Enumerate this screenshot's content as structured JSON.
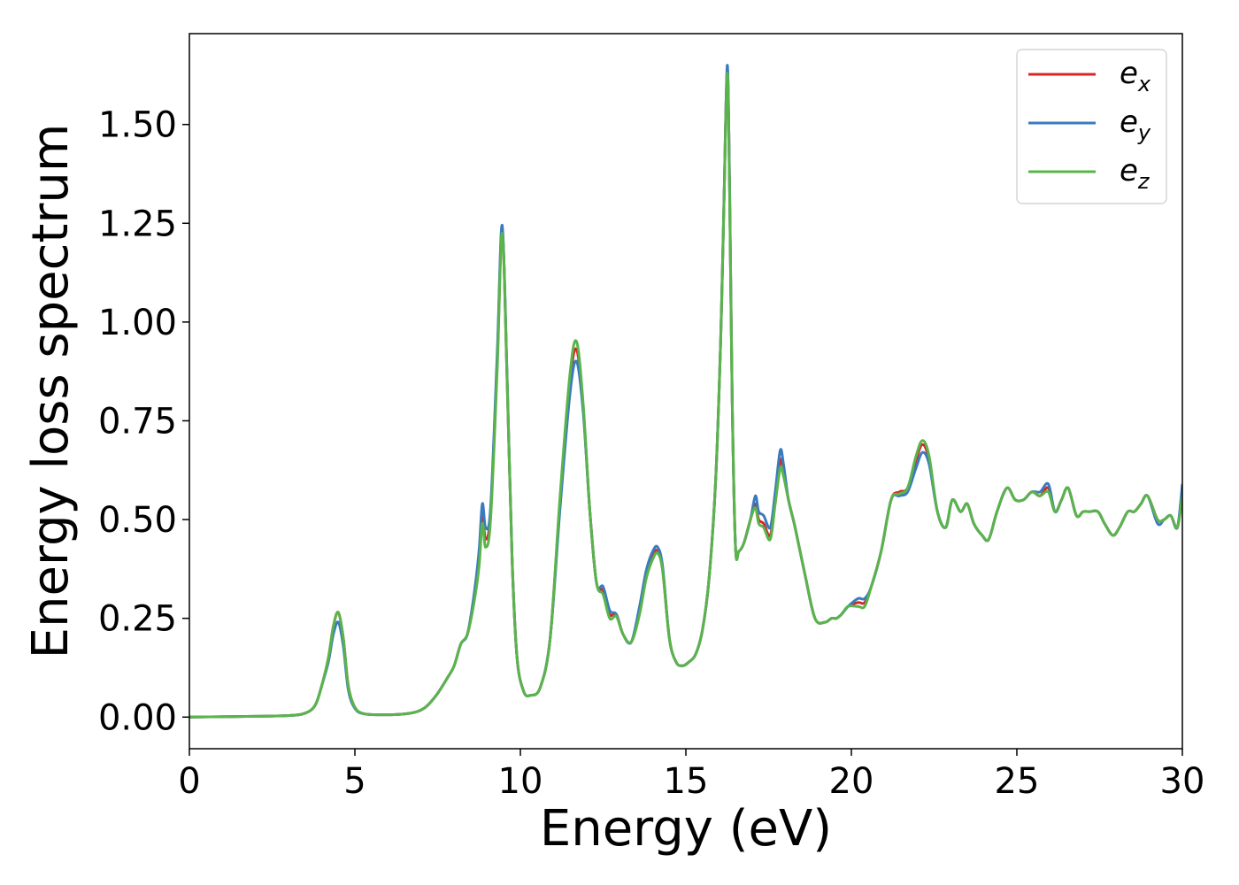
{
  "chart_data": {
    "type": "line",
    "xlabel": "Energy (eV)",
    "ylabel": "Energy loss spectrum",
    "xlim": [
      0,
      30
    ],
    "ylim": [
      -0.08,
      1.73
    ],
    "xticks": [
      0,
      5,
      10,
      15,
      20,
      25,
      30
    ],
    "xtick_labels": [
      "0",
      "5",
      "10",
      "15",
      "20",
      "25",
      "30"
    ],
    "yticks": [
      0,
      0.25,
      0.5,
      0.75,
      1.0,
      1.25,
      1.5
    ],
    "ytick_labels": [
      "0.00",
      "0.25",
      "0.50",
      "0.75",
      "1.00",
      "1.25",
      "1.50"
    ],
    "grid": false,
    "legend_position": "top-right",
    "x": [
      0,
      1,
      2,
      3,
      3.5,
      3.8,
      4.0,
      4.2,
      4.35,
      4.5,
      4.65,
      4.8,
      5.0,
      5.3,
      6.0,
      6.5,
      6.8,
      7.0,
      7.2,
      7.5,
      7.8,
      8.0,
      8.2,
      8.4,
      8.6,
      8.75,
      8.85,
      8.95,
      9.1,
      9.3,
      9.45,
      9.6,
      9.75,
      9.9,
      10.1,
      10.3,
      10.6,
      10.9,
      11.2,
      11.5,
      11.7,
      11.9,
      12.1,
      12.3,
      12.5,
      12.7,
      12.9,
      13.1,
      13.35,
      13.6,
      13.8,
      14.0,
      14.15,
      14.3,
      14.5,
      14.7,
      14.9,
      15.1,
      15.3,
      15.5,
      15.7,
      15.9,
      16.05,
      16.15,
      16.25,
      16.32,
      16.4,
      16.5,
      16.6,
      16.75,
      16.95,
      17.1,
      17.2,
      17.35,
      17.55,
      17.7,
      17.85,
      17.95,
      18.1,
      18.3,
      18.6,
      18.9,
      19.2,
      19.4,
      19.55,
      19.7,
      19.9,
      20.2,
      20.4,
      20.6,
      20.9,
      21.2,
      21.45,
      21.7,
      21.95,
      22.15,
      22.35,
      22.6,
      22.85,
      23.05,
      23.3,
      23.5,
      23.7,
      23.95,
      24.15,
      24.4,
      24.7,
      24.95,
      25.2,
      25.45,
      25.7,
      25.95,
      26.15,
      26.35,
      26.55,
      26.8,
      27.0,
      27.2,
      27.45,
      27.65,
      27.9,
      28.1,
      28.35,
      28.55,
      28.75,
      28.95,
      29.25,
      29.45,
      29.65,
      29.85,
      30.0
    ],
    "series": [
      {
        "name": "e",
        "name_sub": "x",
        "color": "#d62728",
        "values": [
          0,
          0.001,
          0.002,
          0.004,
          0.01,
          0.03,
          0.08,
          0.15,
          0.23,
          0.265,
          0.2,
          0.08,
          0.025,
          0.008,
          0.006,
          0.008,
          0.012,
          0.018,
          0.03,
          0.06,
          0.1,
          0.13,
          0.185,
          0.21,
          0.3,
          0.4,
          0.51,
          0.45,
          0.52,
          0.9,
          1.235,
          0.85,
          0.4,
          0.15,
          0.065,
          0.055,
          0.075,
          0.2,
          0.55,
          0.85,
          0.93,
          0.78,
          0.52,
          0.34,
          0.32,
          0.26,
          0.26,
          0.21,
          0.19,
          0.27,
          0.36,
          0.41,
          0.42,
          0.37,
          0.2,
          0.14,
          0.13,
          0.14,
          0.16,
          0.22,
          0.35,
          0.6,
          0.95,
          1.3,
          1.64,
          1.35,
          0.8,
          0.43,
          0.42,
          0.44,
          0.5,
          0.54,
          0.5,
          0.49,
          0.46,
          0.55,
          0.65,
          0.62,
          0.55,
          0.48,
          0.36,
          0.25,
          0.24,
          0.25,
          0.25,
          0.26,
          0.28,
          0.29,
          0.29,
          0.33,
          0.42,
          0.55,
          0.57,
          0.58,
          0.65,
          0.69,
          0.65,
          0.52,
          0.48,
          0.55,
          0.52,
          0.54,
          0.49,
          0.46,
          0.45,
          0.52,
          0.58,
          0.55,
          0.55,
          0.57,
          0.56,
          0.58,
          0.52,
          0.55,
          0.58,
          0.51,
          0.52,
          0.52,
          0.52,
          0.49,
          0.46,
          0.48,
          0.52,
          0.52,
          0.54,
          0.56,
          0.5,
          0.5,
          0.51,
          0.48,
          0.58
        ]
      },
      {
        "name": "e",
        "name_sub": "y",
        "color": "#3a7bbf",
        "values": [
          0,
          0.001,
          0.002,
          0.004,
          0.01,
          0.03,
          0.08,
          0.14,
          0.21,
          0.24,
          0.18,
          0.07,
          0.022,
          0.008,
          0.006,
          0.008,
          0.012,
          0.018,
          0.03,
          0.06,
          0.1,
          0.13,
          0.185,
          0.21,
          0.31,
          0.42,
          0.54,
          0.48,
          0.53,
          0.92,
          1.245,
          0.86,
          0.4,
          0.15,
          0.065,
          0.055,
          0.075,
          0.2,
          0.53,
          0.82,
          0.9,
          0.77,
          0.52,
          0.34,
          0.33,
          0.27,
          0.26,
          0.21,
          0.19,
          0.28,
          0.37,
          0.42,
          0.43,
          0.38,
          0.2,
          0.14,
          0.13,
          0.14,
          0.16,
          0.22,
          0.35,
          0.6,
          0.95,
          1.3,
          1.65,
          1.35,
          0.8,
          0.43,
          0.42,
          0.44,
          0.5,
          0.56,
          0.52,
          0.51,
          0.48,
          0.57,
          0.675,
          0.64,
          0.55,
          0.48,
          0.36,
          0.25,
          0.24,
          0.25,
          0.25,
          0.26,
          0.28,
          0.3,
          0.3,
          0.33,
          0.42,
          0.55,
          0.56,
          0.57,
          0.63,
          0.67,
          0.64,
          0.52,
          0.48,
          0.55,
          0.52,
          0.54,
          0.49,
          0.46,
          0.45,
          0.52,
          0.58,
          0.55,
          0.55,
          0.57,
          0.57,
          0.59,
          0.52,
          0.55,
          0.58,
          0.51,
          0.52,
          0.52,
          0.52,
          0.49,
          0.46,
          0.48,
          0.52,
          0.52,
          0.54,
          0.56,
          0.49,
          0.5,
          0.51,
          0.48,
          0.59
        ]
      },
      {
        "name": "e",
        "name_sub": "z",
        "color": "#5ab44b",
        "values": [
          0,
          0.001,
          0.002,
          0.004,
          0.01,
          0.03,
          0.08,
          0.15,
          0.23,
          0.265,
          0.2,
          0.08,
          0.025,
          0.008,
          0.006,
          0.008,
          0.012,
          0.018,
          0.03,
          0.06,
          0.1,
          0.13,
          0.185,
          0.21,
          0.29,
          0.38,
          0.49,
          0.43,
          0.5,
          0.88,
          1.225,
          0.85,
          0.4,
          0.15,
          0.065,
          0.055,
          0.075,
          0.2,
          0.56,
          0.87,
          0.95,
          0.79,
          0.52,
          0.34,
          0.31,
          0.25,
          0.255,
          0.21,
          0.19,
          0.26,
          0.35,
          0.4,
          0.415,
          0.37,
          0.2,
          0.14,
          0.13,
          0.14,
          0.16,
          0.22,
          0.35,
          0.6,
          0.95,
          1.3,
          1.63,
          1.33,
          0.8,
          0.43,
          0.42,
          0.44,
          0.5,
          0.53,
          0.49,
          0.48,
          0.45,
          0.54,
          0.63,
          0.61,
          0.55,
          0.48,
          0.36,
          0.25,
          0.24,
          0.25,
          0.25,
          0.26,
          0.28,
          0.28,
          0.28,
          0.33,
          0.42,
          0.55,
          0.565,
          0.58,
          0.66,
          0.7,
          0.66,
          0.52,
          0.48,
          0.55,
          0.52,
          0.54,
          0.49,
          0.46,
          0.45,
          0.52,
          0.58,
          0.55,
          0.55,
          0.57,
          0.56,
          0.57,
          0.52,
          0.55,
          0.58,
          0.51,
          0.52,
          0.52,
          0.52,
          0.49,
          0.46,
          0.48,
          0.52,
          0.52,
          0.54,
          0.56,
          0.5,
          0.5,
          0.51,
          0.48,
          0.56
        ]
      }
    ]
  }
}
